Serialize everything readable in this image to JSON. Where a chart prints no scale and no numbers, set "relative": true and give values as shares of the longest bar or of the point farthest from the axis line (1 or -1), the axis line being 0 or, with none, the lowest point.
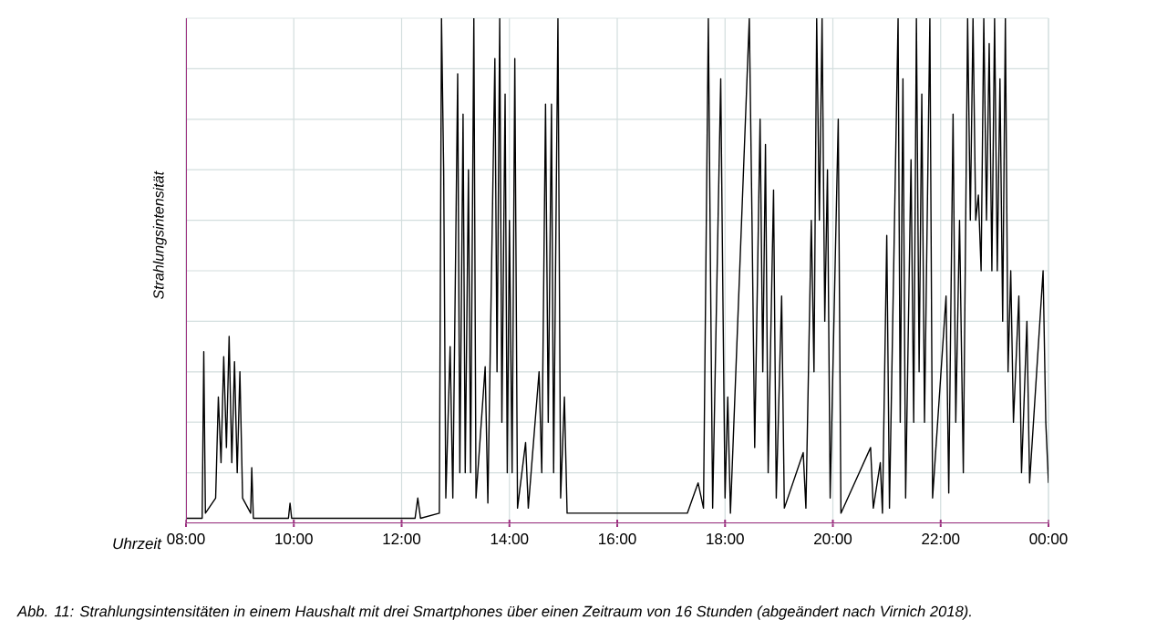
{
  "chart_data": {
    "type": "line",
    "relative": true,
    "grid": true,
    "ylabel": "Strahlungsintensität",
    "xlabel": "Uhrzeit",
    "annotations": [
      "Abb. 11: Strahlungsintensitäten in einem Haushalt mit drei Smartphones über einen Zeitraum von 16 Stunden (abgeändert nach Virnich 2018)."
    ],
    "xlim": [
      8,
      24
    ],
    "xticks": [
      {
        "value": 8,
        "label": "08:00"
      },
      {
        "value": 10,
        "label": "10:00"
      },
      {
        "value": 12,
        "label": "12:00"
      },
      {
        "value": 14,
        "label": "14:00"
      },
      {
        "value": 16,
        "label": "16:00"
      },
      {
        "value": 18,
        "label": "18:00"
      },
      {
        "value": 20,
        "label": "20:00"
      },
      {
        "value": 22,
        "label": "22:00"
      },
      {
        "value": 24,
        "label": "00:00"
      }
    ],
    "series": [
      {
        "color": "#000000",
        "x": [
          8.0,
          8.3,
          8.33,
          8.36,
          8.55,
          8.6,
          8.65,
          8.7,
          8.75,
          8.8,
          8.85,
          8.9,
          8.95,
          9.0,
          9.05,
          9.2,
          9.22,
          9.25,
          9.9,
          9.93,
          9.96,
          12.25,
          12.3,
          12.35,
          12.7,
          12.74,
          12.78,
          12.82,
          12.9,
          12.95,
          13.04,
          13.08,
          13.14,
          13.18,
          13.24,
          13.28,
          13.34,
          13.38,
          13.55,
          13.6,
          13.73,
          13.77,
          13.82,
          13.86,
          13.92,
          13.96,
          14.0,
          14.05,
          14.1,
          14.15,
          14.3,
          14.35,
          14.55,
          14.6,
          14.67,
          14.72,
          14.78,
          14.82,
          14.9,
          14.95,
          15.02,
          15.07,
          17.3,
          17.5,
          17.6,
          17.69,
          17.73,
          17.77,
          17.92,
          17.96,
          18.0,
          18.05,
          18.1,
          18.45,
          18.5,
          18.55,
          18.65,
          18.7,
          18.75,
          18.8,
          18.9,
          18.95,
          19.05,
          19.1,
          19.45,
          19.5,
          19.6,
          19.65,
          19.7,
          19.75,
          19.8,
          19.85,
          19.9,
          19.95,
          20.1,
          20.15,
          20.7,
          20.75,
          20.88,
          20.92,
          21.0,
          21.05,
          21.21,
          21.25,
          21.3,
          21.35,
          21.45,
          21.5,
          21.55,
          21.6,
          21.65,
          21.7,
          21.75,
          21.8,
          21.85,
          22.1,
          22.15,
          22.23,
          22.28,
          22.35,
          22.42,
          22.5,
          22.55,
          22.6,
          22.65,
          22.7,
          22.75,
          22.8,
          22.85,
          22.9,
          22.95,
          23.0,
          23.05,
          23.1,
          23.15,
          23.2,
          23.25,
          23.3,
          23.35,
          23.45,
          23.5,
          23.6,
          23.65,
          23.9,
          23.95,
          24.0
        ],
        "values": [
          0.01,
          0.01,
          0.34,
          0.02,
          0.05,
          0.25,
          0.12,
          0.33,
          0.15,
          0.37,
          0.12,
          0.32,
          0.1,
          0.3,
          0.05,
          0.02,
          0.11,
          0.01,
          0.01,
          0.04,
          0.01,
          0.01,
          0.05,
          0.01,
          0.02,
          1,
          0.7,
          0.05,
          0.35,
          0.05,
          0.89,
          0.1,
          0.81,
          0.1,
          0.7,
          0.1,
          1,
          0.05,
          0.31,
          0.04,
          0.92,
          0.3,
          1,
          0.2,
          0.85,
          0.1,
          0.6,
          0.1,
          0.92,
          0.03,
          0.16,
          0.03,
          0.3,
          0.1,
          0.83,
          0.2,
          0.83,
          0.1,
          1,
          0.05,
          0.25,
          0.02,
          0.02,
          0.08,
          0.03,
          1,
          0.5,
          0.03,
          0.88,
          0.45,
          0.05,
          0.25,
          0.02,
          1,
          0.6,
          0.15,
          0.8,
          0.3,
          0.75,
          0.1,
          0.66,
          0.05,
          0.45,
          0.03,
          0.14,
          0.03,
          0.6,
          0.3,
          1,
          0.6,
          1,
          0.4,
          0.7,
          0.05,
          0.8,
          0.02,
          0.15,
          0.03,
          0.12,
          0.02,
          0.57,
          0.03,
          1,
          0.2,
          0.88,
          0.05,
          0.72,
          0.2,
          1,
          0.3,
          0.85,
          0.2,
          0.6,
          1,
          0.05,
          0.45,
          0.06,
          0.81,
          0.2,
          0.6,
          0.1,
          1,
          0.6,
          1,
          0.6,
          0.65,
          0.5,
          1,
          0.6,
          0.95,
          0.5,
          1,
          0.5,
          0.88,
          0.4,
          1,
          0.3,
          0.5,
          0.2,
          0.45,
          0.1,
          0.4,
          0.08,
          0.5,
          0.2,
          0.08
        ]
      }
    ]
  }
}
